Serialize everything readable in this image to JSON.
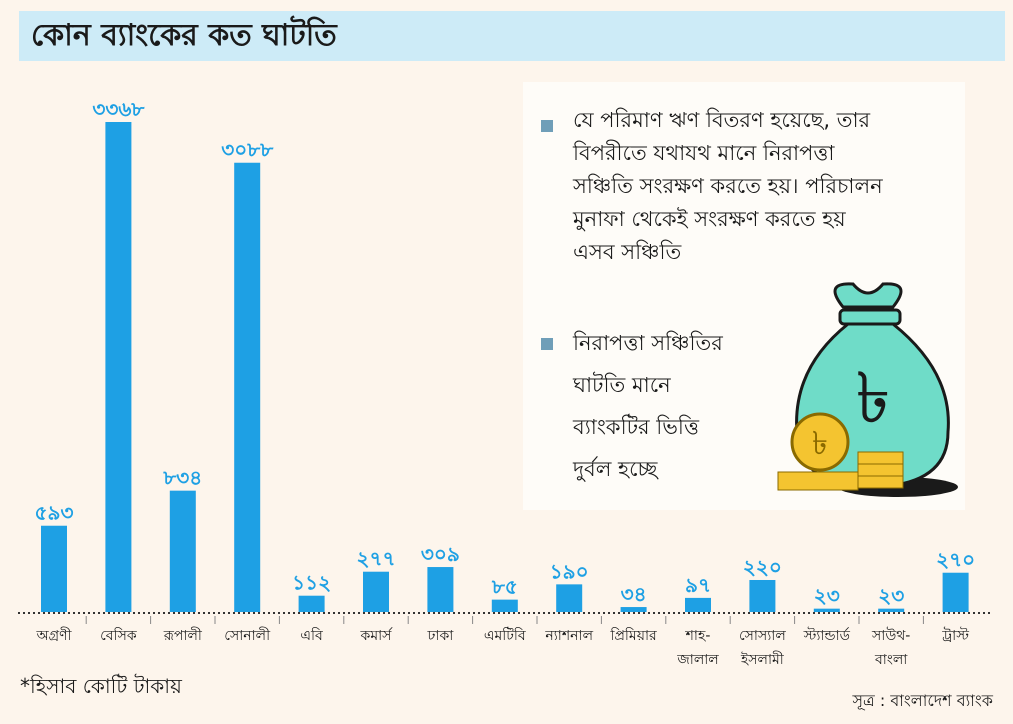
{
  "chart_data": {
    "type": "bar",
    "title": "কোন ব্যাংকের কত ঘাটতি",
    "categories": [
      [
        "অগ্রণী"
      ],
      [
        "বেসিক"
      ],
      [
        "রূপালী"
      ],
      [
        "সোনালী"
      ],
      [
        "এবি"
      ],
      [
        "কমার্স"
      ],
      [
        "ঢাকা"
      ],
      [
        "এমটিবি"
      ],
      [
        "ন্যাশনাল"
      ],
      [
        "প্রিমিয়ার"
      ],
      [
        "শাহ-",
        "জালাল"
      ],
      [
        "সোস্যাল",
        "ইসলামী"
      ],
      [
        "স্ট্যান্ডার্ড"
      ],
      [
        "সাউথ-",
        "বাংলা"
      ],
      [
        "ট্রাস্ট"
      ]
    ],
    "values": [
      593,
      3368,
      834,
      3088,
      112,
      277,
      309,
      85,
      190,
      34,
      97,
      220,
      23,
      23,
      270
    ],
    "value_labels": [
      "৫৯৩",
      "৩৩৬৮",
      "৮৩৪",
      "৩০৮৮",
      "১১২",
      "২৭৭",
      "৩০৯",
      "৮৫",
      "১৯০",
      "৩৪",
      "৯৭",
      "২২০",
      "২৩",
      "২৩",
      "২৭০"
    ],
    "ylim": [
      0,
      3368
    ],
    "grid": false,
    "bar_color": "#1ea0e4",
    "xlabel": "",
    "ylabel": ""
  },
  "notes": [
    [
      "যে পরিমাণ ঋণ বিতরণ হয়েছে, তার",
      "বিপরীতে যথাযথ মানে নিরাপত্তা",
      "সঞ্চিতি সংরক্ষণ করতে হয়। পরিচালন",
      "মুনাফা থেকেই সংরক্ষণ করতে হয়",
      "এসব সঞ্চিতি"
    ],
    [
      "নিরাপত্তা সঞ্চিতির",
      "ঘাটতি মানে",
      "ব্যাংকটির ভিত্তি",
      "দুর্বল হচ্ছে"
    ]
  ],
  "footnote": "*হিসাব কোটি টাকায়",
  "source": "সূত্র : বাংলাদেশ ব্যাংক",
  "illustration": {
    "symbol": "৳",
    "name": "money-bag-icon"
  }
}
